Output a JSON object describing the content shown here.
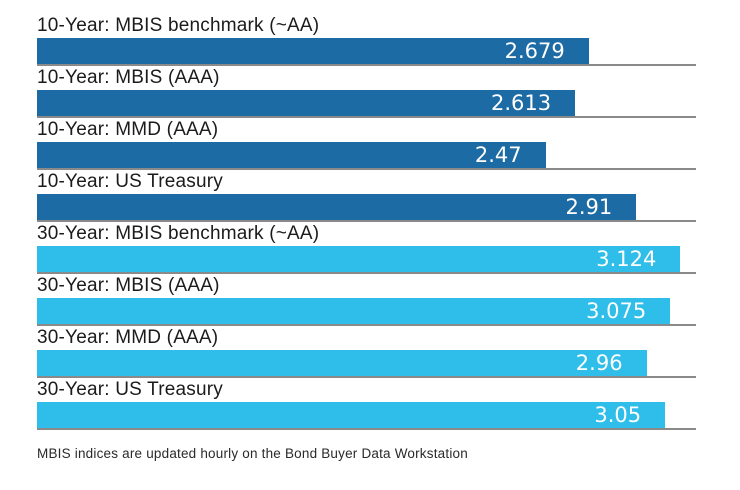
{
  "chart_data": {
    "type": "bar",
    "orientation": "horizontal",
    "title": "",
    "xlabel": "",
    "ylabel": "",
    "xlim": [
      0,
      3.2
    ],
    "grid": false,
    "legend": "none",
    "categories": [
      "10-Year: MBIS benchmark (~AA)",
      "10-Year: MBIS (AAA)",
      "10-Year: MMD (AAA)",
      "10-Year: US Treasury",
      "30-Year: MBIS benchmark (~AA)",
      "30-Year: MBIS (AAA)",
      "30-Year: MMD (AAA)",
      "30-Year: US Treasury"
    ],
    "values": [
      2.679,
      2.613,
      2.47,
      2.91,
      3.124,
      3.075,
      2.96,
      3.05
    ],
    "value_labels": [
      "2.679",
      "2.613",
      "2.47",
      "2.91",
      "3.124",
      "3.075",
      "2.96",
      "3.05"
    ],
    "groups": [
      "10-year",
      "10-year",
      "10-year",
      "10-year",
      "30-year",
      "30-year",
      "30-year",
      "30-year"
    ],
    "bar_colors": [
      "#1c6ba5",
      "#1c6ba5",
      "#1c6ba5",
      "#1c6ba5",
      "#2fbee9",
      "#2fbee9",
      "#2fbee9",
      "#2fbee9"
    ],
    "footnote": "MBIS indices are updated hourly on the Bond Buyer Data Workstation"
  },
  "colors": {
    "bar_10_year": "#1c6ba5",
    "bar_30_year": "#2fbee9",
    "baseline": "#8a8a8a",
    "label_text": "#1b1b1b",
    "value_text": "#ffffff",
    "background": "#ffffff"
  }
}
